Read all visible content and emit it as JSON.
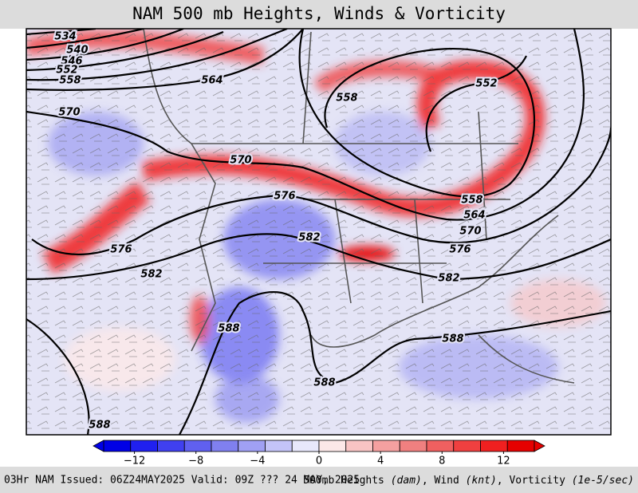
{
  "header": {
    "title": "NAM 500 mb Heights, Winds & Vorticity"
  },
  "map": {
    "contour_labels": [
      534,
      540,
      546,
      552,
      558,
      564,
      570,
      558,
      552,
      570,
      576,
      576,
      582,
      582,
      588,
      588,
      588,
      588,
      582,
      576,
      570,
      564,
      558
    ]
  },
  "colorbar": {
    "lim": [
      -14,
      14
    ],
    "colors": [
      "#0000e6",
      "#2020f0",
      "#4040f0",
      "#6060f0",
      "#8080f0",
      "#a0a0f4",
      "#c4c4f8",
      "#e8e8fc",
      "#fce8e8",
      "#f8c4c4",
      "#f4a0a0",
      "#f08080",
      "#f06060",
      "#f04040",
      "#f02020",
      "#e60000"
    ],
    "ticks": [
      {
        "value": -12,
        "label": "−12"
      },
      {
        "value": -8,
        "label": "−8"
      },
      {
        "value": -4,
        "label": "−4"
      },
      0,
      4,
      8,
      12
    ]
  },
  "footer": {
    "left": "03Hr NAM Issued: 06Z24MAY2025 Valid: 09Z ??? 24 MAY, 2025",
    "right": [
      "500mb Heights ",
      "(dam)",
      ", Wind ",
      "(knt)",
      ", Vorticity ",
      "(1e-5/sec)"
    ]
  }
}
